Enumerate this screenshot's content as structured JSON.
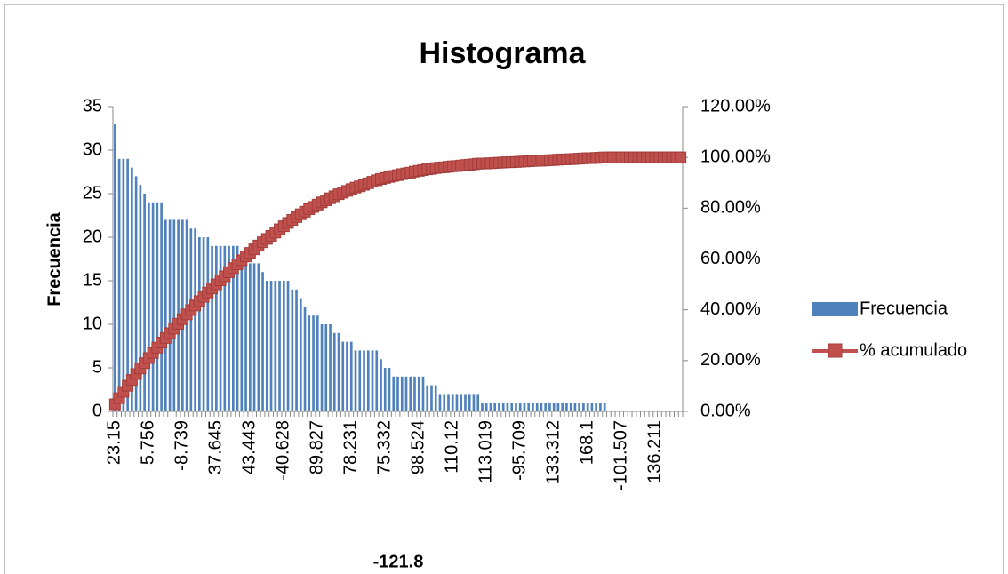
{
  "chart_data": {
    "type": "bar",
    "title": "Histograma",
    "x_label": "-121.8",
    "y_label": "Frecuencia",
    "categories": [
      "23.15",
      null,
      null,
      null,
      null,
      null,
      null,
      null,
      "5.756",
      null,
      null,
      null,
      null,
      null,
      null,
      null,
      "-8.739",
      null,
      null,
      null,
      null,
      null,
      null,
      null,
      "37.645",
      null,
      null,
      null,
      null,
      null,
      null,
      null,
      "43.443",
      null,
      null,
      null,
      null,
      null,
      null,
      null,
      "-40.628",
      null,
      null,
      null,
      null,
      null,
      null,
      null,
      "89.827",
      null,
      null,
      null,
      null,
      null,
      null,
      null,
      "78.231",
      null,
      null,
      null,
      null,
      null,
      null,
      null,
      "75.332",
      null,
      null,
      null,
      null,
      null,
      null,
      null,
      "98.524",
      null,
      null,
      null,
      null,
      null,
      null,
      null,
      "110.12",
      null,
      null,
      null,
      null,
      null,
      null,
      null,
      "113.019",
      null,
      null,
      null,
      null,
      null,
      null,
      null,
      "-95.709",
      null,
      null,
      null,
      null,
      null,
      null,
      null,
      "133.312",
      null,
      null,
      null,
      null,
      null,
      null,
      null,
      "168.1",
      null,
      null,
      null,
      null,
      null,
      null,
      null,
      "-101.507",
      null,
      null,
      null,
      null,
      null,
      null,
      null,
      "136.211",
      null,
      null,
      null,
      null,
      null,
      null
    ],
    "series": [
      {
        "name": "Frecuencia",
        "type": "bar",
        "color": "#4f81bd",
        "values": [
          33,
          29,
          29,
          29,
          28,
          27,
          26,
          25,
          24,
          24,
          24,
          24,
          22,
          22,
          22,
          22,
          22,
          22,
          21,
          21,
          20,
          20,
          20,
          19,
          19,
          19,
          19,
          19,
          19,
          19,
          18,
          18,
          17,
          17,
          17,
          16,
          15,
          15,
          15,
          15,
          15,
          15,
          14,
          14,
          13,
          12,
          11,
          11,
          11,
          10,
          10,
          10,
          9,
          9,
          8,
          8,
          8,
          7,
          7,
          7,
          7,
          7,
          7,
          6,
          5,
          5,
          4,
          4,
          4,
          4,
          4,
          4,
          4,
          4,
          3,
          3,
          3,
          2,
          2,
          2,
          2,
          2,
          2,
          2,
          2,
          2,
          2,
          1,
          1,
          1,
          1,
          1,
          1,
          1,
          1,
          1,
          1,
          1,
          1,
          1,
          1,
          1,
          1,
          1,
          1,
          1,
          1,
          1,
          1,
          1,
          1,
          1,
          1,
          1,
          1,
          1,
          1,
          0,
          0,
          0,
          0,
          0,
          0,
          0,
          0,
          0,
          0,
          0,
          0,
          0,
          0,
          0,
          0,
          0,
          0
        ]
      },
      {
        "name": "% acumulado",
        "type": "line",
        "axis": "y2",
        "color": "#c0504d",
        "values": [
          2.8,
          5.2,
          7.7,
          10.1,
          12.4,
          14.7,
          16.9,
          19.0,
          21.0,
          23.0,
          25.1,
          27.1,
          28.9,
          30.8,
          32.6,
          34.5,
          36.3,
          38.2,
          39.9,
          41.7,
          43.4,
          45.1,
          46.8,
          48.4,
          50,
          51.6,
          53.2,
          54.8,
          56.4,
          57.9,
          59.5,
          61.0,
          62.4,
          63.8,
          65.3,
          66.6,
          67.9,
          69.1,
          70.4,
          71.7,
          72.9,
          74.2,
          75.4,
          76.5,
          77.6,
          78.6,
          79.6,
          80.5,
          81.4,
          82.3,
          83.1,
          83.9,
          84.7,
          85.5,
          86.1,
          86.8,
          87.5,
          88.1,
          88.6,
          89.2,
          89.8,
          90.4,
          91.0,
          91.5,
          91.9,
          92.3,
          92.7,
          93.0,
          93.4,
          93.7,
          94.0,
          94.4,
          94.7,
          95.0,
          95.3,
          95.5,
          95.8,
          96.0,
          96.1,
          96.3,
          96.5,
          96.6,
          96.8,
          97.0,
          97.1,
          97.3,
          97.5,
          97.6,
          97.6,
          97.7,
          97.8,
          97.9,
          98.0,
          98.1,
          98.1,
          98.2,
          98.3,
          98.4,
          98.5,
          98.6,
          98.7,
          98.7,
          98.8,
          98.9,
          99.0,
          99.1,
          99.2,
          99.2,
          99.3,
          99.4,
          99.5,
          99.6,
          99.7,
          99.7,
          99.8,
          99.9,
          100,
          100,
          100,
          100,
          100,
          100,
          100,
          100,
          100,
          100,
          100,
          100,
          100,
          100,
          100,
          100,
          100,
          100,
          100
        ]
      }
    ],
    "ylim": [
      0,
      35
    ],
    "yticks": [
      0,
      5,
      10,
      15,
      20,
      25,
      30,
      35
    ],
    "y2lim": [
      0,
      120
    ],
    "y2ticks": [
      {
        "value": 0,
        "label": "0.00%"
      },
      {
        "value": 20,
        "label": "20.00%"
      },
      {
        "value": 40,
        "label": "40.00%"
      },
      {
        "value": 60,
        "label": "60.00%"
      },
      {
        "value": 80,
        "label": "80.00%"
      },
      {
        "value": 100,
        "label": "100.00%"
      },
      {
        "value": 120,
        "label": "120.00%"
      }
    ],
    "legend": "right"
  }
}
